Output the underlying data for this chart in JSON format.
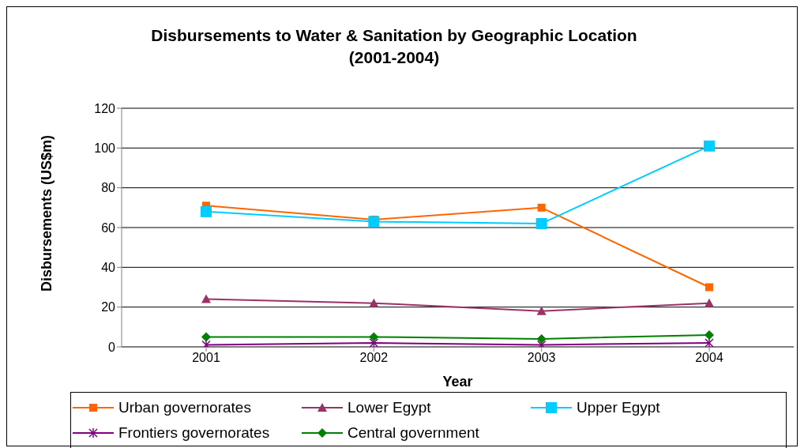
{
  "chart_data": {
    "type": "line",
    "title": "Disbursements to Water & Sanitation by Geographic Location (2001-2004)",
    "xlabel": "Year",
    "ylabel": "Disbursements (US$m)",
    "categories": [
      "2001",
      "2002",
      "2003",
      "2004"
    ],
    "ylim": [
      0,
      120
    ],
    "yticks": [
      0,
      20,
      40,
      60,
      80,
      100,
      120
    ],
    "grid": "y",
    "legend": "bottom",
    "series": [
      {
        "name": "Urban governorates",
        "color": "#ff6600",
        "marker": "square",
        "values": [
          71,
          64,
          70,
          30
        ]
      },
      {
        "name": "Lower Egypt",
        "color": "#993366",
        "marker": "triangle",
        "values": [
          24,
          22,
          18,
          22
        ]
      },
      {
        "name": "Upper Egypt",
        "color": "#00ccff",
        "marker": "square",
        "values": [
          68,
          63,
          62,
          101
        ]
      },
      {
        "name": "Frontiers governorates",
        "color": "#800080",
        "marker": "cross",
        "values": [
          1,
          2,
          1,
          2
        ]
      },
      {
        "name": "Central government",
        "color": "#008000",
        "marker": "diamond",
        "values": [
          5,
          5,
          4,
          6
        ]
      }
    ]
  }
}
